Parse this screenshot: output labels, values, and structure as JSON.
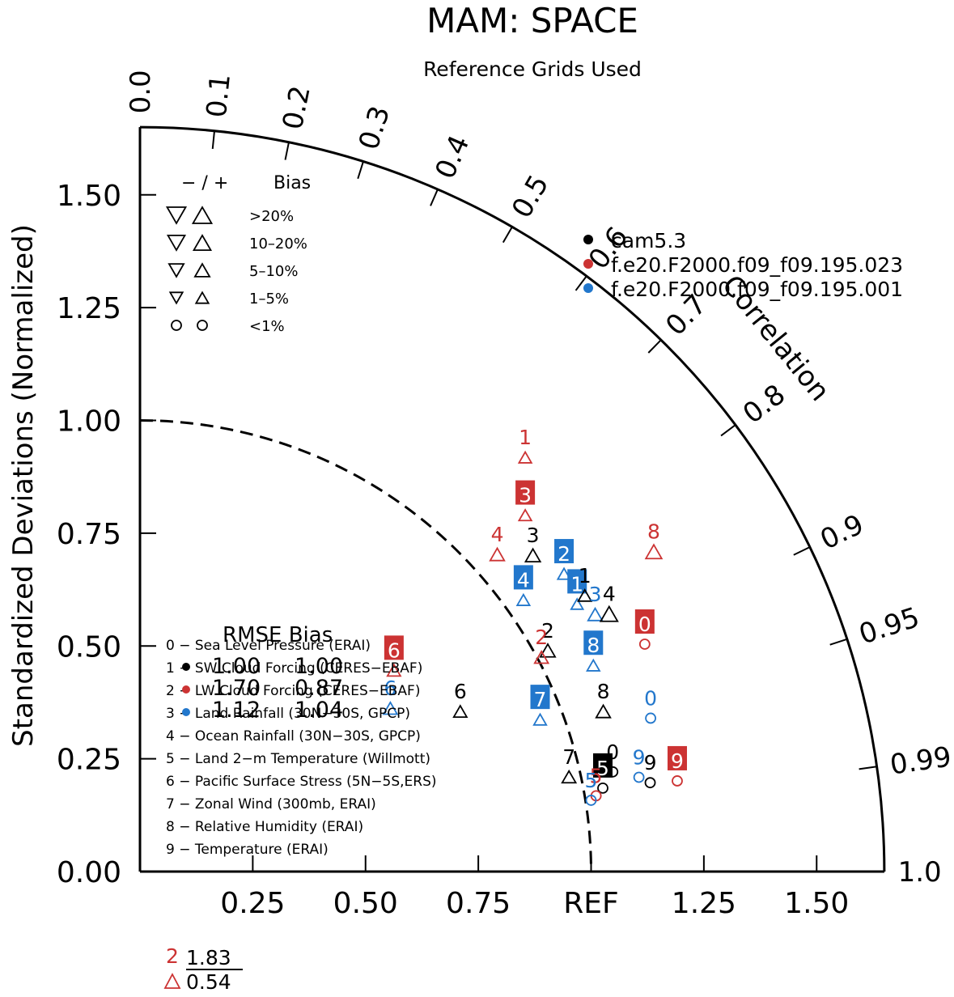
{
  "chart": {
    "title": "MAM: SPACE",
    "subtitle": "Reference Grids Used",
    "ylabel": "Standardized Deviations (Normalized)",
    "xref_label": "REF",
    "corr_label": "Correlation"
  },
  "colors": {
    "black": "#000000",
    "red": "#cc3333",
    "blue": "#2277cc"
  },
  "chart_data": {
    "type": "scatter",
    "subtype": "taylor-diagram",
    "std_range": [
      0,
      1.65
    ],
    "std_ticks": [
      {
        "v": 0.0,
        "label": "0.00"
      },
      {
        "v": 0.25,
        "label": "0.25"
      },
      {
        "v": 0.5,
        "label": "0.50"
      },
      {
        "v": 0.75,
        "label": "0.75"
      },
      {
        "v": 1.0,
        "label": "1.00"
      },
      {
        "v": 1.25,
        "label": "1.25"
      },
      {
        "v": 1.5,
        "label": "1.50"
      }
    ],
    "x_ticks": [
      {
        "v": 0.25,
        "label": "0.25"
      },
      {
        "v": 0.5,
        "label": "0.50"
      },
      {
        "v": 0.75,
        "label": "0.75"
      },
      {
        "v": 1.0,
        "label": "REF"
      },
      {
        "v": 1.25,
        "label": "1.25"
      },
      {
        "v": 1.5,
        "label": "1.50"
      }
    ],
    "corr_ticks": [
      {
        "r": 0.0,
        "label": "0.0"
      },
      {
        "r": 0.1,
        "label": "0.1"
      },
      {
        "r": 0.2,
        "label": "0.2"
      },
      {
        "r": 0.3,
        "label": "0.3"
      },
      {
        "r": 0.4,
        "label": "0.4"
      },
      {
        "r": 0.5,
        "label": "0.5"
      },
      {
        "r": 0.6,
        "label": "0.6"
      },
      {
        "r": 0.7,
        "label": "0.7"
      },
      {
        "r": 0.8,
        "label": "0.8"
      },
      {
        "r": 0.9,
        "label": "0.9"
      },
      {
        "r": 0.95,
        "label": "0.95"
      },
      {
        "r": 0.99,
        "label": "0.99"
      },
      {
        "r": 1.0,
        "label": "1.0"
      }
    ],
    "series": [
      {
        "name": "cam5.3",
        "color": "black"
      },
      {
        "name": "f.e20.F2000.f09_f09.195.023",
        "color": "red"
      },
      {
        "name": "f.e20.F2000.f09_f09.195.001",
        "color": "blue"
      }
    ],
    "bias_legend": {
      "header_signs": "− / +",
      "header_label": "Bias",
      "rows": [
        {
          "label": ">20%",
          "size": 1.0
        },
        {
          "label": "10–20%",
          "size": 0.85
        },
        {
          "label": "5–10%",
          "size": 0.65
        },
        {
          "label": "1–5%",
          "size": 0.45
        },
        {
          "label": "<1%",
          "size": 0.0
        }
      ]
    },
    "variables": [
      "0 − Sea Level Pressure (ERAI)",
      "1 − SW Cloud Forcing (CERES−EBAF)",
      "2 − LW Cloud Forcing (CERES−EBAF)",
      "3 − Land Rainfall (30N−30S, GPCP)",
      "4 − Ocean Rainfall (30N−30S, GPCP)",
      "5 − Land 2−m Temperature (Willmott)",
      "6 − Pacific Surface Stress (5N−5S,ERS)",
      "7 − Zonal Wind (300mb, ERAI)",
      "8 − Relative Humidity (ERAI)",
      "9 − Temperature (ERAI)"
    ],
    "rmse_header": "RMSE Bias",
    "rmse_rows": [
      {
        "rmse": "1.00",
        "bias": "1.00"
      },
      {
        "rmse": "1.70",
        "bias": "0.87"
      },
      {
        "rmse": "1.12",
        "bias": "1.04"
      }
    ],
    "outlier": {
      "num": "2",
      "top": "1.83",
      "bottom": "0.54"
    },
    "points": [
      {
        "label": "1",
        "c": "red",
        "x": 0.854,
        "y": 0.918,
        "shape": "up",
        "size": 0.45
      },
      {
        "label": "3",
        "c": "red",
        "x": 0.854,
        "y": 0.79,
        "shape": "up",
        "size": 0.45,
        "boxed": true
      },
      {
        "label": "4",
        "c": "red",
        "x": 0.792,
        "y": 0.703,
        "shape": "up",
        "size": 0.6
      },
      {
        "label": "3",
        "c": "black",
        "x": 0.871,
        "y": 0.701,
        "shape": "up",
        "size": 0.65
      },
      {
        "label": "8",
        "c": "red",
        "x": 1.139,
        "y": 0.709,
        "shape": "up",
        "size": 0.75
      },
      {
        "label": "2",
        "c": "blue",
        "x": 0.94,
        "y": 0.66,
        "shape": "up",
        "size": 0.45,
        "boxed": true
      },
      {
        "label": "1",
        "c": "blue",
        "x": 0.969,
        "y": 0.593,
        "shape": "up",
        "size": 0.4,
        "boxed": true
      },
      {
        "label": "1",
        "c": "black",
        "x": 0.986,
        "y": 0.612,
        "shape": "up",
        "size": 0.5
      },
      {
        "label": "3",
        "c": "blue",
        "x": 1.009,
        "y": 0.57,
        "shape": "up",
        "size": 0.6
      },
      {
        "label": "4",
        "c": "black",
        "x": 1.04,
        "y": 0.571,
        "shape": "up",
        "size": 0.85
      },
      {
        "label": "4",
        "c": "blue",
        "x": 0.85,
        "y": 0.602,
        "shape": "up",
        "size": 0.45,
        "boxed": true
      },
      {
        "label": "0",
        "c": "red",
        "x": 1.119,
        "y": 0.504,
        "shape": "circle",
        "boxed": true
      },
      {
        "label": "2",
        "c": "black",
        "x": 0.904,
        "y": 0.49,
        "shape": "up",
        "size": 0.65
      },
      {
        "label": "2",
        "c": "red",
        "x": 0.89,
        "y": 0.475,
        "shape": "up",
        "size": 0.55
      },
      {
        "label": "8",
        "c": "blue",
        "x": 1.005,
        "y": 0.457,
        "shape": "up",
        "size": 0.45,
        "boxed": true
      },
      {
        "label": "6",
        "c": "red",
        "x": 0.563,
        "y": 0.446,
        "shape": "up",
        "size": 0.5,
        "boxed": true
      },
      {
        "label": "6",
        "c": "blue",
        "x": 0.555,
        "y": 0.362,
        "shape": "up",
        "size": 0.55
      },
      {
        "label": "6",
        "c": "black",
        "x": 0.71,
        "y": 0.355,
        "shape": "up",
        "size": 0.5
      },
      {
        "label": "7",
        "c": "blue",
        "x": 0.887,
        "y": 0.337,
        "shape": "up",
        "size": 0.45,
        "boxed": true
      },
      {
        "label": "8",
        "c": "black",
        "x": 1.027,
        "y": 0.355,
        "shape": "up",
        "size": 0.6
      },
      {
        "label": "0",
        "c": "blue",
        "x": 1.132,
        "y": 0.34,
        "shape": "circle"
      },
      {
        "label": "7",
        "c": "black",
        "x": 0.951,
        "y": 0.21,
        "shape": "up",
        "size": 0.55
      },
      {
        "label": "9",
        "c": "blue",
        "x": 1.106,
        "y": 0.209,
        "shape": "circle"
      },
      {
        "label": "9",
        "c": "black",
        "x": 1.131,
        "y": 0.197,
        "shape": "circle"
      },
      {
        "label": "9",
        "c": "red",
        "x": 1.191,
        "y": 0.201,
        "shape": "circle",
        "boxed": true
      },
      {
        "label": "0",
        "c": "black",
        "x": 1.048,
        "y": 0.221,
        "shape": "circle"
      },
      {
        "label": "5",
        "c": "black",
        "x": 1.026,
        "y": 0.185,
        "shape": "circle",
        "boxed": true
      },
      {
        "label": "5",
        "c": "red",
        "x": 1.011,
        "y": 0.168,
        "shape": "circle"
      },
      {
        "label": "5",
        "c": "blue",
        "x": 1.0,
        "y": 0.158,
        "shape": "circle"
      }
    ]
  }
}
